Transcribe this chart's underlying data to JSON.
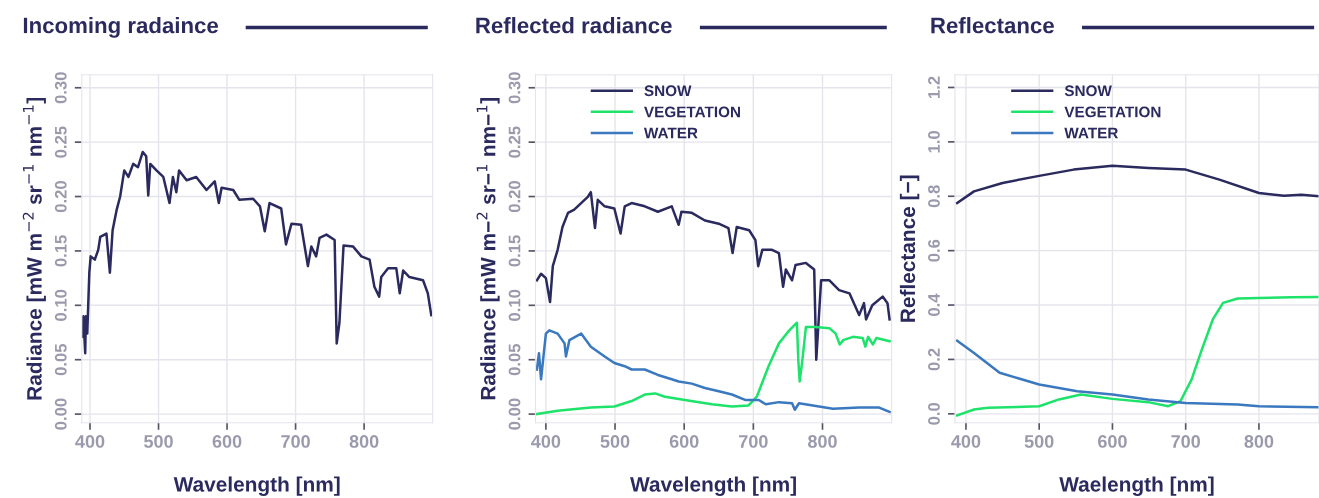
{
  "chart_data": [
    {
      "type": "line",
      "title": "Incoming radaince",
      "xlabel": "Wavelength [nm]",
      "ylabel": "Radiance [mW m$^{−2}$ sr$^{−1}$ nm$^{−1}$]",
      "xlim": [
        388,
        900
      ],
      "ylim": [
        -0.008,
        0.312
      ],
      "xticks": [
        400,
        500,
        600,
        700,
        800
      ],
      "yticks": [
        {
          "value": 0,
          "label": "0.00"
        },
        {
          "value": 0.05,
          "label": "0.05"
        },
        {
          "value": 0.1,
          "label": "0.10"
        },
        {
          "value": 0.15,
          "label": "0.15"
        },
        {
          "value": 0.2,
          "label": "0.20"
        },
        {
          "value": 0.25,
          "label": "0.25"
        },
        {
          "value": 0.3,
          "label": "0.30"
        }
      ],
      "grid": true,
      "legend": false,
      "series": [
        {
          "color": "#2b2a5e",
          "x": [
            390,
            390.3,
            393,
            394,
            396,
            399,
            401,
            407,
            412,
            415,
            424,
            429,
            433,
            439,
            444,
            450,
            456,
            463,
            470,
            477,
            482,
            485,
            488,
            497,
            507,
            516,
            521,
            526,
            530,
            541,
            555,
            570,
            582,
            588,
            592,
            609,
            618,
            638,
            648,
            655,
            662,
            679,
            686,
            694,
            708,
            718,
            723,
            730,
            735,
            745,
            757,
            760,
            764,
            770,
            784,
            796,
            808,
            815,
            822,
            825,
            835,
            847,
            852,
            857,
            866,
            886,
            893,
            898
          ],
          "values": [
            0.071,
            0.09,
            0.056,
            0.09,
            0.074,
            0.13,
            0.145,
            0.142,
            0.151,
            0.163,
            0.166,
            0.13,
            0.169,
            0.188,
            0.2,
            0.224,
            0.218,
            0.23,
            0.227,
            0.241,
            0.237,
            0.201,
            0.23,
            0.224,
            0.218,
            0.194,
            0.218,
            0.204,
            0.224,
            0.215,
            0.218,
            0.206,
            0.214,
            0.194,
            0.208,
            0.206,
            0.197,
            0.198,
            0.191,
            0.168,
            0.194,
            0.189,
            0.156,
            0.175,
            0.174,
            0.136,
            0.154,
            0.145,
            0.162,
            0.165,
            0.16,
            0.065,
            0.084,
            0.155,
            0.154,
            0.145,
            0.142,
            0.117,
            0.108,
            0.126,
            0.134,
            0.134,
            0.111,
            0.132,
            0.126,
            0.123,
            0.111,
            0.091
          ]
        }
      ]
    },
    {
      "type": "line",
      "title": "Reflected radiance",
      "xlabel": "Wavelength [nm]",
      "ylabel": "Radiance [mW m−$^{2}$ sr−$^{1}$ nm−$^{1}$]",
      "xlim": [
        385,
        900
      ],
      "ylim": [
        -0.008,
        0.312
      ],
      "xticks": [
        400,
        500,
        600,
        700,
        800
      ],
      "yticks": [
        {
          "value": 0,
          "label": "0.00"
        },
        {
          "value": 0.05,
          "label": "0.05"
        },
        {
          "value": 0.1,
          "label": "0.10"
        },
        {
          "value": 0.15,
          "label": "0.15"
        },
        {
          "value": 0.2,
          "label": "0.20"
        },
        {
          "value": 0.25,
          "label": "0.25"
        },
        {
          "value": 0.3,
          "label": "0.30"
        }
      ],
      "grid": true,
      "legend": "top left",
      "series": [
        {
          "name": "SNOW",
          "color": "#2b2a5e",
          "x": [
            387,
            393,
            400,
            406,
            410,
            417,
            424,
            432,
            441,
            451,
            461,
            465,
            471,
            475,
            485,
            499,
            508,
            514,
            524,
            543,
            562,
            582,
            592,
            596,
            611,
            630,
            650,
            664,
            670,
            676,
            694,
            703,
            707,
            713,
            727,
            737,
            743,
            747,
            756,
            761,
            776,
            788,
            791,
            798,
            810,
            824,
            839,
            853,
            860,
            863,
            872,
            887,
            894,
            897
          ],
          "values": [
            0.123,
            0.129,
            0.125,
            0.103,
            0.136,
            0.151,
            0.172,
            0.185,
            0.188,
            0.194,
            0.2,
            0.204,
            0.171,
            0.197,
            0.191,
            0.189,
            0.166,
            0.191,
            0.194,
            0.191,
            0.186,
            0.191,
            0.174,
            0.186,
            0.185,
            0.178,
            0.175,
            0.171,
            0.148,
            0.172,
            0.169,
            0.16,
            0.136,
            0.151,
            0.151,
            0.148,
            0.117,
            0.133,
            0.123,
            0.137,
            0.139,
            0.133,
            0.05,
            0.123,
            0.123,
            0.114,
            0.111,
            0.091,
            0.102,
            0.087,
            0.1,
            0.108,
            0.102,
            0.087
          ]
        },
        {
          "name": "VEGETATION",
          "color": "#1de36a",
          "x": [
            387,
            417,
            465,
            499,
            524,
            543,
            558,
            572,
            601,
            640,
            669,
            693,
            705,
            722,
            737,
            752,
            763,
            765,
            767,
            771,
            776,
            790,
            810,
            819,
            825,
            830,
            844,
            858,
            862,
            866,
            873,
            878,
            897
          ],
          "values": [
            0.0,
            0.003,
            0.006,
            0.007,
            0.012,
            0.018,
            0.019,
            0.016,
            0.013,
            0.009,
            0.007,
            0.008,
            0.016,
            0.044,
            0.065,
            0.077,
            0.084,
            0.05,
            0.03,
            0.05,
            0.08,
            0.08,
            0.079,
            0.074,
            0.064,
            0.068,
            0.071,
            0.07,
            0.062,
            0.071,
            0.064,
            0.07,
            0.067
          ]
        },
        {
          "name": "WATER",
          "color": "#3a78bf",
          "x": [
            387,
            390,
            393,
            396,
            400,
            405,
            417,
            427,
            429,
            434,
            451,
            465,
            485,
            499,
            514,
            524,
            543,
            562,
            582,
            592,
            611,
            630,
            650,
            669,
            688,
            708,
            718,
            737,
            756,
            760,
            766,
            795,
            815,
            853,
            882,
            897
          ],
          "values": [
            0.041,
            0.056,
            0.032,
            0.05,
            0.074,
            0.077,
            0.074,
            0.065,
            0.053,
            0.068,
            0.074,
            0.062,
            0.053,
            0.047,
            0.044,
            0.041,
            0.041,
            0.036,
            0.032,
            0.03,
            0.028,
            0.024,
            0.021,
            0.018,
            0.013,
            0.013,
            0.009,
            0.011,
            0.01,
            0.004,
            0.01,
            0.007,
            0.005,
            0.006,
            0.006,
            0.002
          ]
        }
      ]
    },
    {
      "type": "line",
      "title": "Reflectance",
      "xlabel": "Waelength [nm]",
      "ylabel": "Reflectance [−]",
      "xlim": [
        385,
        882
      ],
      "ylim": [
        -0.033,
        1.247
      ],
      "xticks": [
        400,
        500,
        600,
        700,
        800
      ],
      "yticks": [
        {
          "value": 0,
          "label": "0.0"
        },
        {
          "value": 0.2,
          "label": "0.2"
        },
        {
          "value": 0.4,
          "label": "0.4"
        },
        {
          "value": 0.6,
          "label": "0.6"
        },
        {
          "value": 0.8,
          "label": "0.8"
        },
        {
          "value": 1.0,
          "label": "1.0"
        },
        {
          "value": 1.2,
          "label": "1.2"
        }
      ],
      "grid": true,
      "legend": "top left",
      "series": [
        {
          "name": "SNOW",
          "color": "#2b2a5e",
          "x": [
            388,
            411,
            450,
            500,
            547,
            600,
            649,
            700,
            746,
            800,
            834,
            858,
            881
          ],
          "values": [
            0.775,
            0.818,
            0.849,
            0.875,
            0.898,
            0.912,
            0.904,
            0.898,
            0.861,
            0.812,
            0.802,
            0.806,
            0.8
          ]
        },
        {
          "name": "VEGETATION",
          "color": "#1de36a",
          "x": [
            388,
            411,
            430,
            500,
            527,
            557,
            600,
            649,
            676,
            693,
            708,
            722,
            737,
            751,
            771,
            800,
            844,
            881
          ],
          "values": [
            -0.006,
            0.016,
            0.022,
            0.028,
            0.053,
            0.071,
            0.055,
            0.043,
            0.028,
            0.047,
            0.126,
            0.236,
            0.347,
            0.408,
            0.424,
            0.426,
            0.429,
            0.43
          ]
        },
        {
          "name": "WATER",
          "color": "#3a78bf",
          "x": [
            388,
            411,
            446,
            500,
            552,
            600,
            649,
            700,
            771,
            800,
            881
          ],
          "values": [
            0.269,
            0.224,
            0.151,
            0.108,
            0.083,
            0.071,
            0.053,
            0.04,
            0.034,
            0.028,
            0.024
          ]
        }
      ]
    }
  ]
}
